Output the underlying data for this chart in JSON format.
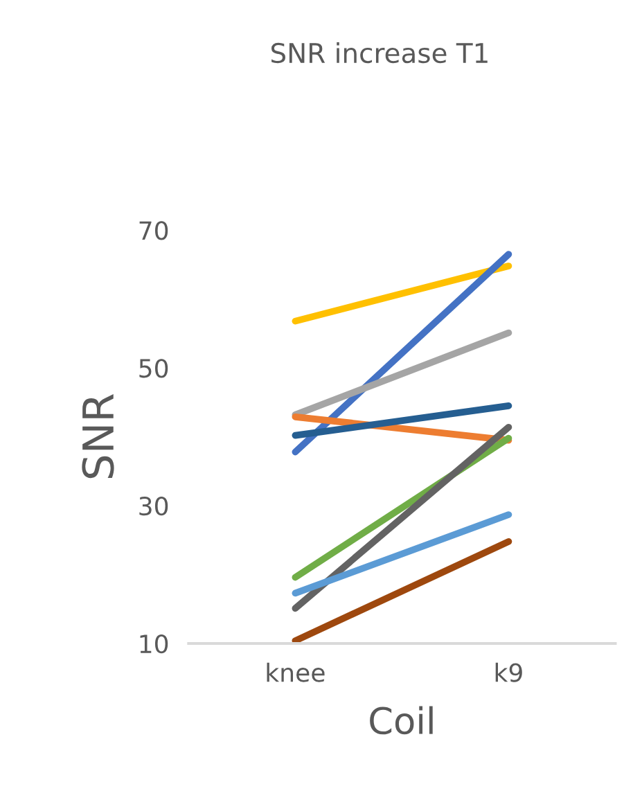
{
  "chart_data": {
    "type": "line",
    "title": "SNR increase T1",
    "xlabel": "Coil",
    "ylabel": "SNR",
    "categories": [
      "knee",
      "k9"
    ],
    "series": [
      {
        "color": "#ffc000",
        "values": [
          56.8,
          64.8
        ]
      },
      {
        "color": "#4472c4",
        "values": [
          37.8,
          66.5
        ]
      },
      {
        "color": "#a5a5a5",
        "values": [
          43.2,
          55.1
        ]
      },
      {
        "color": "#ed7d31",
        "values": [
          42.9,
          39.5
        ]
      },
      {
        "color": "#255e91",
        "values": [
          40.2,
          44.5
        ]
      },
      {
        "color": "#70ad47",
        "values": [
          19.6,
          39.8
        ]
      },
      {
        "color": "#636363",
        "values": [
          15.1,
          41.4
        ]
      },
      {
        "color": "#5b9bd5",
        "values": [
          17.3,
          28.7
        ]
      },
      {
        "color": "#9e480e",
        "values": [
          10.4,
          24.8
        ]
      }
    ],
    "ylim": [
      10,
      70
    ],
    "yticks": [
      10,
      30,
      50,
      70
    ],
    "grid": false,
    "legend": false,
    "marker": "none",
    "line_style": "solid"
  }
}
